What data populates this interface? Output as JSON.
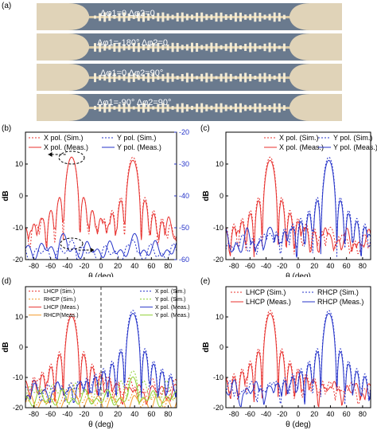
{
  "figure": {
    "panel_labels": [
      "(a)",
      "(b)",
      "(c)",
      "(d)",
      "(e)"
    ],
    "photos": [
      {
        "label": "Δφ1=0  Δφ2=0"
      },
      {
        "label": "Δφ1=-180°  Δφ2=0"
      },
      {
        "label": "Δφ1=0  Δφ2=90°"
      },
      {
        "label": "Δφ1=-90°  Δφ2=90°"
      }
    ],
    "colors": {
      "red": "#e8312e",
      "blue": "#2533c9",
      "orange": "#f39a2a",
      "green": "#8fd134",
      "photo_bg": "#6a7a8e",
      "photo_pad": "#e0d3b8"
    }
  },
  "chart_data": [
    {
      "id": "b",
      "type": "line",
      "xlabel": "θ (deg)",
      "ylabel": "dB",
      "xlim": [
        -90,
        90
      ],
      "ylim": [
        -20,
        20
      ],
      "xticks": [
        -80,
        -60,
        -40,
        -20,
        0,
        20,
        40,
        60,
        80
      ],
      "yticks": [
        -20,
        -10,
        0,
        10
      ],
      "ylim_right": [
        -60,
        -20
      ],
      "yticks_right": [
        -60,
        -50,
        -40,
        -30,
        -20
      ],
      "legend": [
        "X pol. (Sim.)",
        "X pol. (Meas.)",
        "Y pol. (Sim.)",
        "Y pol. (Meas.)"
      ],
      "series": [
        {
          "name": "X pol. (Sim.)",
          "axis": "left",
          "peaks": [
            [
              -35,
              12
            ],
            [
              38,
              12
            ]
          ]
        },
        {
          "name": "X pol. (Meas.)",
          "axis": "left",
          "peaks": [
            [
              -35,
              12
            ],
            [
              38,
              11
            ]
          ]
        },
        {
          "name": "Y pol. (Sim.)",
          "axis": "right",
          "peaks": [
            [
              -35,
              -54
            ],
            [
              38,
              -54
            ]
          ]
        },
        {
          "name": "Y pol. (Meas.)",
          "axis": "right",
          "peaks": [
            [
              -45,
              -52
            ],
            [
              40,
              -52
            ]
          ]
        }
      ]
    },
    {
      "id": "c",
      "type": "line",
      "xlabel": "θ (deg)",
      "ylabel": "dB",
      "xlim": [
        -90,
        90
      ],
      "ylim": [
        -20,
        20
      ],
      "xticks": [
        -80,
        -60,
        -40,
        -20,
        0,
        20,
        40,
        60,
        80
      ],
      "yticks": [
        -20,
        -10,
        0,
        10
      ],
      "legend": [
        "X pol. (Sim.)",
        "X pol. (Meas.)",
        "Y pol. (Sim.)",
        "Y pol. (Meas.)"
      ],
      "series": [
        {
          "name": "X pol. (Sim.)",
          "peaks": [
            [
              -35,
              12
            ],
            [
              40,
              -10
            ]
          ]
        },
        {
          "name": "X pol. (Meas.)",
          "peaks": [
            [
              -35,
              11
            ],
            [
              38,
              -12
            ]
          ]
        },
        {
          "name": "Y pol. (Sim.)",
          "peaks": [
            [
              -35,
              -12
            ],
            [
              38,
              12
            ]
          ]
        },
        {
          "name": "Y pol. (Meas.)",
          "peaks": [
            [
              -35,
              -10
            ],
            [
              38,
              11
            ]
          ]
        }
      ]
    },
    {
      "id": "d",
      "type": "line",
      "xlabel": "θ (deg)",
      "ylabel": "dB",
      "xlim": [
        -90,
        90
      ],
      "ylim": [
        -20,
        20
      ],
      "xticks": [
        -80,
        -60,
        -40,
        -20,
        0,
        20,
        40,
        60,
        80
      ],
      "yticks": [
        -20,
        -10,
        0,
        10
      ],
      "legend_left": [
        "LHCP (Sim.)",
        "RHCP (Sim.)",
        "LHCP (Meas.)",
        "RHCP(Meas.)"
      ],
      "legend_right": [
        "X pol. (Sim.)",
        "Y pol. (Sim.)",
        "X pol. (Meas.)",
        "Y pol. (Meas.)"
      ],
      "series": [
        {
          "name": "LHCP (Sim.)",
          "peaks": [
            [
              -35,
              11
            ]
          ]
        },
        {
          "name": "RHCP (Sim.)",
          "peaks": [
            [
              -35,
              -12
            ]
          ]
        },
        {
          "name": "LHCP (Meas.)",
          "peaks": [
            [
              -35,
              10
            ]
          ]
        },
        {
          "name": "RHCP(Meas.)",
          "peaks": [
            [
              -35,
              -14
            ]
          ]
        },
        {
          "name": "X pol. (Sim.)",
          "peaks": [
            [
              38,
              12
            ]
          ]
        },
        {
          "name": "Y pol. (Sim.)",
          "peaks": [
            [
              38,
              -8
            ]
          ]
        },
        {
          "name": "X pol. (Meas.)",
          "peaks": [
            [
              38,
              11
            ]
          ]
        },
        {
          "name": "Y pol. (Meas.)",
          "peaks": [
            [
              38,
              -10
            ]
          ]
        }
      ]
    },
    {
      "id": "e",
      "type": "line",
      "xlabel": "θ (deg)",
      "ylabel": "dB",
      "xlim": [
        -90,
        90
      ],
      "ylim": [
        -20,
        20
      ],
      "xticks": [
        -80,
        -60,
        -40,
        -20,
        0,
        20,
        40,
        60,
        80
      ],
      "yticks": [
        -20,
        -10,
        0,
        10
      ],
      "legend": [
        "LHCP (Sim.)",
        "LHCP (Meas.)",
        "RHCP (Sim.)",
        "RHCP (Meas.)"
      ],
      "series": [
        {
          "name": "LHCP (Sim.)",
          "peaks": [
            [
              -35,
              12
            ],
            [
              40,
              -12
            ]
          ]
        },
        {
          "name": "LHCP (Meas.)",
          "peaks": [
            [
              -35,
              11
            ],
            [
              38,
              -14
            ]
          ]
        },
        {
          "name": "RHCP (Sim.)",
          "peaks": [
            [
              -35,
              -12
            ],
            [
              38,
              12
            ]
          ]
        },
        {
          "name": "RHCP (Meas.)",
          "peaks": [
            [
              -35,
              -13
            ],
            [
              38,
              11
            ]
          ]
        }
      ]
    }
  ]
}
